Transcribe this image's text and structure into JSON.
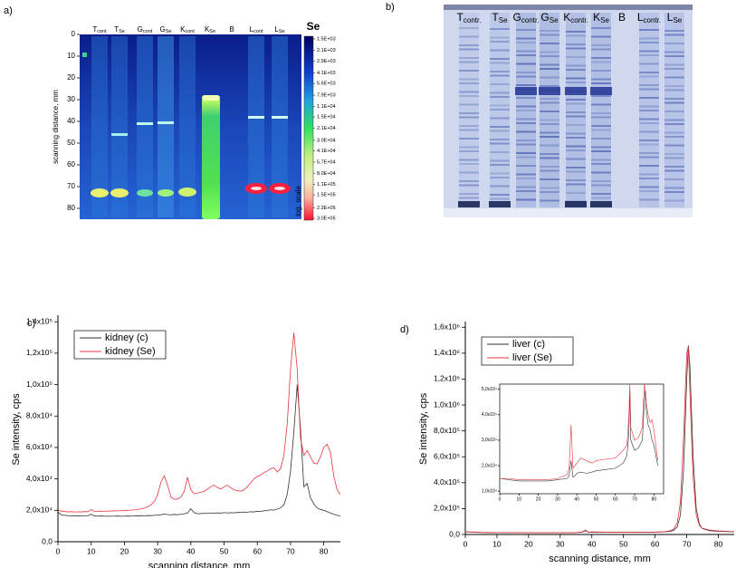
{
  "chart_data": [
    {
      "type": "heatmap",
      "panel_label": "a)",
      "ylabel": "scanning distance, mm",
      "ylim": [
        0,
        85
      ],
      "yticks": [
        0,
        10,
        20,
        30,
        40,
        50,
        60,
        70,
        80
      ],
      "lanes": [
        {
          "main": "T",
          "sub": "cont"
        },
        {
          "main": "T",
          "sub": "Se"
        },
        {
          "main": "G",
          "sub": "cont"
        },
        {
          "main": "G",
          "sub": "Se"
        },
        {
          "main": "K",
          "sub": "cont"
        },
        {
          "main": "K",
          "sub": "Se"
        },
        {
          "main": "B"
        },
        {
          "main": "L",
          "sub": "cont"
        },
        {
          "main": "L",
          "sub": "Se"
        }
      ],
      "colorbar_title": "Se",
      "colorbar_note": "log. scale",
      "clim": [
        1500,
        300000
      ],
      "log_scale": true,
      "colorbar_ticks": [
        {
          "value": 1500,
          "label": "1.5E+03"
        },
        {
          "value": 2100,
          "label": "2.1E+03"
        },
        {
          "value": 2900,
          "label": "2.9E+03"
        },
        {
          "value": 4100,
          "label": "4.1E+03"
        },
        {
          "value": 5600,
          "label": "5.6E+03"
        },
        {
          "value": 7900,
          "label": "7.9E+03"
        },
        {
          "value": 11000,
          "label": "1.1E+04"
        },
        {
          "value": 15000,
          "label": "1.5E+04"
        },
        {
          "value": 21000,
          "label": "2.1E+04"
        },
        {
          "value": 30000,
          "label": "3.0E+04"
        },
        {
          "value": 41000,
          "label": "4.1E+04"
        },
        {
          "value": 57000,
          "label": "5.7E+04"
        },
        {
          "value": 80000,
          "label": "8.0E+04"
        },
        {
          "value": 110000,
          "label": "1.1E+05"
        },
        {
          "value": 150000,
          "label": "1.5E+05"
        },
        {
          "value": 220000,
          "label": "2.2E+05"
        },
        {
          "value": 300000,
          "label": "3.0E+05"
        }
      ]
    },
    {
      "type": "line",
      "panel_label": "c)",
      "xlabel": "scanning distance, mm",
      "ylabel": "Se intensity, cps",
      "xlim": [
        0,
        85
      ],
      "xticks": [
        0,
        10,
        20,
        30,
        40,
        50,
        60,
        70,
        80
      ],
      "ylim": [
        0,
        143000
      ],
      "yticks": [
        {
          "value": 0,
          "label": "0,0"
        },
        {
          "value": 20000,
          "label": "2,0x10⁴"
        },
        {
          "value": 40000,
          "label": "4,0x10⁴"
        },
        {
          "value": 60000,
          "label": "6,0x10⁴"
        },
        {
          "value": 80000,
          "label": "8,0x10⁴"
        },
        {
          "value": 100000,
          "label": "1,0x10⁵"
        },
        {
          "value": 120000,
          "label": "1,2x10⁵"
        },
        {
          "value": 140000,
          "label": "1,4x10⁵"
        }
      ],
      "legend": "upper left",
      "x": [
        0,
        1,
        2,
        3,
        4,
        5,
        6,
        7,
        8,
        9,
        10,
        11,
        12,
        13,
        14,
        15,
        16,
        17,
        18,
        19,
        20,
        21,
        22,
        23,
        24,
        25,
        26,
        27,
        28,
        29,
        30,
        31,
        32,
        33,
        34,
        35,
        36,
        37,
        38,
        39,
        40,
        41,
        42,
        43,
        44,
        45,
        46,
        47,
        48,
        49,
        50,
        51,
        52,
        53,
        54,
        55,
        56,
        57,
        58,
        59,
        60,
        61,
        62,
        63,
        64,
        65,
        66,
        67,
        68,
        69,
        70,
        71,
        72,
        73,
        74,
        75,
        76,
        77,
        78,
        79,
        80,
        81,
        82,
        83,
        84,
        85
      ],
      "series": [
        {
          "name": "kidney (c)",
          "color": "#333333",
          "values": [
            19000,
            17000,
            16800,
            16600,
            16500,
            16600,
            16400,
            16500,
            16300,
            16500,
            17500,
            16400,
            16300,
            16400,
            16200,
            16300,
            16200,
            16300,
            16400,
            16200,
            16300,
            16400,
            16300,
            16500,
            16400,
            16600,
            16500,
            16700,
            16600,
            16800,
            17000,
            17200,
            17600,
            17300,
            17100,
            17400,
            17200,
            17500,
            17800,
            18200,
            21000,
            18500,
            17800,
            17900,
            18100,
            18000,
            18300,
            18100,
            18400,
            18200,
            18600,
            18300,
            18500,
            18400,
            18700,
            18600,
            18900,
            18800,
            19100,
            19000,
            19400,
            19300,
            19700,
            19900,
            20300,
            20100,
            20800,
            21500,
            23500,
            30000,
            45000,
            70000,
            100000,
            72000,
            35000,
            37000,
            28000,
            24000,
            21500,
            20500,
            20000,
            19200,
            18300,
            17500,
            16800,
            16500
          ]
        },
        {
          "name": "kidney (Se)",
          "color": "#e8343c",
          "values": [
            20000,
            19500,
            19200,
            19000,
            19200,
            18900,
            19100,
            19000,
            19200,
            19100,
            20500,
            19300,
            19400,
            19500,
            19300,
            19600,
            19500,
            19700,
            19600,
            19800,
            19700,
            20000,
            20100,
            20300,
            20600,
            20900,
            21500,
            22200,
            23500,
            25500,
            30000,
            38000,
            42000,
            36000,
            28500,
            27000,
            27200,
            28500,
            32000,
            41000,
            33000,
            30500,
            31000,
            31500,
            32000,
            33500,
            35000,
            36000,
            34500,
            33500,
            35000,
            36000,
            34500,
            33000,
            32500,
            32200,
            33000,
            35000,
            37500,
            40000,
            41500,
            42500,
            44000,
            45000,
            46500,
            47000,
            44500,
            46500,
            55000,
            75000,
            110000,
            133000,
            110000,
            66000,
            55000,
            58000,
            54000,
            50000,
            49500,
            54000,
            60000,
            62000,
            57000,
            42000,
            33000,
            30000
          ]
        }
      ]
    },
    {
      "type": "line",
      "panel_label": "d)",
      "xlabel": "scanning distance, mm",
      "ylabel": "Se intensity, cps",
      "xlim": [
        0,
        85
      ],
      "xticks": [
        0,
        10,
        20,
        30,
        40,
        50,
        60,
        70,
        80
      ],
      "ylim": [
        0,
        1630000
      ],
      "yticks": [
        {
          "value": 0,
          "label": "0,0"
        },
        {
          "value": 200000,
          "label": "2,0x10⁵"
        },
        {
          "value": 400000,
          "label": "4,0x10⁵"
        },
        {
          "value": 600000,
          "label": "6,0x10⁵"
        },
        {
          "value": 800000,
          "label": "8,0x10⁵"
        },
        {
          "value": 1000000,
          "label": "1,0x10⁶"
        },
        {
          "value": 1200000,
          "label": "1,2x10⁶"
        },
        {
          "value": 1400000,
          "label": "1,4x10⁶"
        },
        {
          "value": 1600000,
          "label": "1,6x10⁶"
        }
      ],
      "legend": "upper left",
      "x": [
        0,
        5,
        10,
        15,
        20,
        25,
        30,
        35,
        37,
        38,
        39,
        40,
        45,
        50,
        55,
        60,
        63,
        65,
        66,
        67,
        68,
        69,
        70,
        70.5,
        71,
        72,
        73,
        74,
        75,
        77,
        80,
        85
      ],
      "series": [
        {
          "name": "liver (c)",
          "color": "#333333",
          "values": [
            20000,
            15000,
            14000,
            14000,
            13000,
            13000,
            13000,
            14000,
            18000,
            30000,
            16000,
            18000,
            17000,
            17000,
            17000,
            18000,
            20000,
            25000,
            35000,
            60000,
            150000,
            500000,
            1200000,
            1460000,
            1300000,
            600000,
            200000,
            80000,
            45000,
            30000,
            25000,
            20000
          ]
        },
        {
          "name": "liver (Se)",
          "color": "#e8343c",
          "values": [
            22000,
            17000,
            15000,
            15000,
            14000,
            14000,
            14000,
            15000,
            20000,
            35000,
            17000,
            20000,
            18000,
            18000,
            18000,
            19000,
            22000,
            30000,
            45000,
            90000,
            250000,
            750000,
            1400000,
            1450000,
            1100000,
            450000,
            150000,
            70000,
            48000,
            35000,
            28000,
            22000
          ]
        }
      ],
      "inset": {
        "xlim": [
          0,
          85
        ],
        "xticks": [
          0,
          10,
          20,
          30,
          40,
          50,
          60,
          70,
          80
        ],
        "ylim": [
          9000,
          52000
        ],
        "yticks": [
          {
            "value": 10000,
            "label": "1,0x10⁴"
          },
          {
            "value": 20000,
            "label": "2,0x10⁴"
          },
          {
            "value": 30000,
            "label": "3,0x10⁴"
          },
          {
            "value": 40000,
            "label": "4,0x10⁴"
          },
          {
            "value": 50000,
            "label": "5,0x10⁴"
          }
        ],
        "x": [
          0,
          5,
          10,
          15,
          20,
          25,
          30,
          35,
          36,
          37,
          38,
          39,
          40,
          42,
          45,
          48,
          50,
          55,
          60,
          64,
          66,
          67,
          67.5,
          68,
          70,
          72,
          74,
          75,
          75.5,
          76,
          77,
          78,
          79,
          80,
          82
        ],
        "series": [
          {
            "color": "#333333",
            "values": [
              15000,
              14500,
              14000,
              14000,
              14000,
              14000,
              14500,
              15000,
              16000,
              22000,
              15500,
              16000,
              17000,
              17500,
              17000,
              17500,
              18000,
              18500,
              19000,
              21000,
              24000,
              33000,
              50000,
              30000,
              26000,
              27000,
              30000,
              45000,
              50000,
              42000,
              36000,
              34000,
              30000,
              28000,
              20000
            ]
          },
          {
            "color": "#e8343c",
            "values": [
              15000,
              15000,
              14500,
              14500,
              14500,
              14500,
              15000,
              16500,
              19000,
              36000,
              19000,
              20000,
              21000,
              23000,
              22000,
              21000,
              22000,
              22500,
              23000,
              26000,
              28000,
              40000,
              52000,
              35000,
              30000,
              31000,
              35000,
              52000,
              50000,
              45000,
              40000,
              37000,
              38000,
              34000,
              22000
            ]
          }
        ]
      }
    }
  ],
  "gel": {
    "panel_label": "b)",
    "lanes": [
      {
        "main": "T",
        "sub": "contr."
      },
      {
        "main": "T",
        "sub": "Se"
      },
      {
        "main": "G",
        "sub": "contr."
      },
      {
        "main": "G",
        "sub": "Se"
      },
      {
        "main": "K",
        "sub": "contr."
      },
      {
        "main": "K",
        "sub": "Se"
      },
      {
        "main": "B"
      },
      {
        "main": "L",
        "sub": "contr."
      },
      {
        "main": "L",
        "sub": "Se"
      }
    ]
  }
}
